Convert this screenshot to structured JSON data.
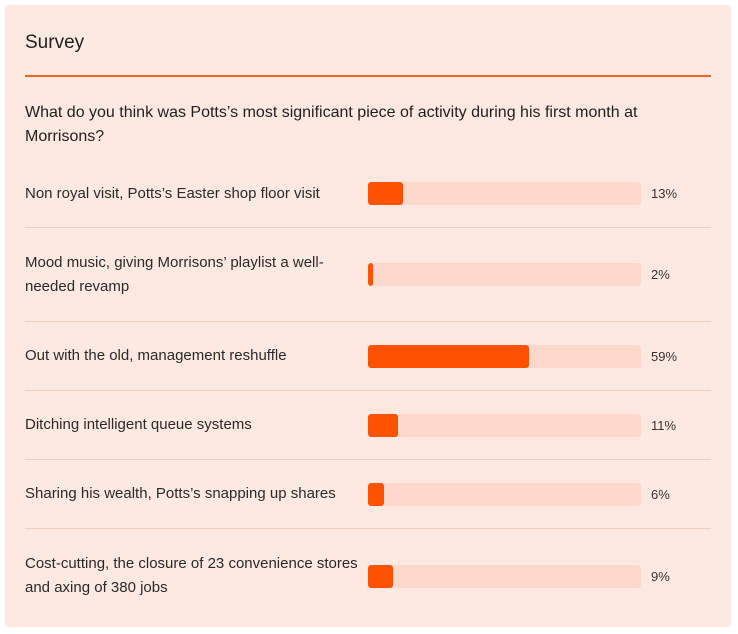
{
  "survey": {
    "title": "Survey",
    "question": "What do you think was Potts’s most significant piece of activity during his first month at Morrisons?",
    "accent_color": "#fe5102",
    "options": [
      {
        "label": "Non royal visit, Potts’s Easter shop floor visit",
        "percent_label": "13%",
        "fraction": 0.13
      },
      {
        "label": "Mood music, giving Morrisons’ playlist a well-needed revamp",
        "percent_label": "2%",
        "fraction": 0.02
      },
      {
        "label": "Out with the old, management reshuffle",
        "percent_label": "59%",
        "fraction": 0.59
      },
      {
        "label": "Ditching intelligent queue systems",
        "percent_label": "11%",
        "fraction": 0.11
      },
      {
        "label": "Sharing his wealth, Potts’s snapping up shares",
        "percent_label": "6%",
        "fraction": 0.06
      },
      {
        "label": "Cost-cutting, the closure of 23 convenience stores and axing of 380 jobs",
        "percent_label": "9%",
        "fraction": 0.09
      }
    ]
  }
}
